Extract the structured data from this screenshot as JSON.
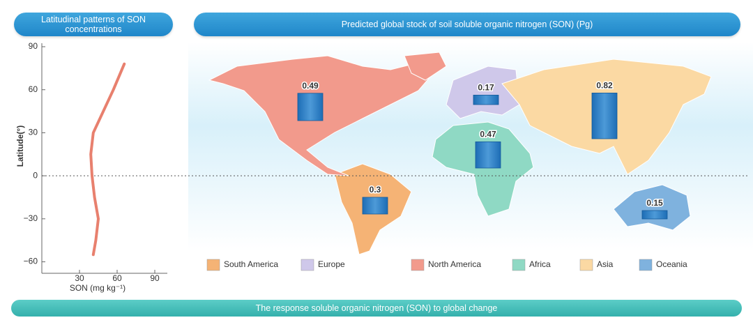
{
  "chart_data": [
    {
      "type": "line",
      "title": "Latitudinal patterns of SON concentrations",
      "xlabel": "SON (mg kg⁻¹)",
      "ylabel": "Latitude(°)",
      "xlim": [
        0,
        100
      ],
      "xticks": [
        30,
        60,
        90
      ],
      "ylim": [
        -68,
        90
      ],
      "yticks": [
        90,
        60,
        30,
        0,
        {
          "value": -30,
          "label": "−30"
        },
        {
          "value": -60,
          "label": "−60"
        }
      ],
      "color": "#e8806e",
      "values": [
        65.7,
        57,
        49,
        41,
        39,
        40,
        42,
        45,
        43,
        41
      ],
      "y": [
        78,
        60,
        45,
        30,
        15,
        0,
        -15,
        -30,
        -45,
        -55
      ]
    },
    {
      "type": "bar",
      "title": "Predicted global stock of soil soluble organic nitrogen (SON) (Pg)",
      "categories": [
        "South America",
        "Europe",
        "North America",
        "Africa",
        "Asia",
        "Oceania"
      ],
      "colors": [
        "#f5b375",
        "#cfc8ea",
        "#f29a8c",
        "#8fd9c4",
        "#fbd9a3",
        "#7fb2de"
      ],
      "values": [
        0.3,
        0.17,
        0.49,
        0.47,
        0.82,
        0.15
      ]
    }
  ],
  "footer": "The response soluble organic nitrogen (SON)  to global change"
}
